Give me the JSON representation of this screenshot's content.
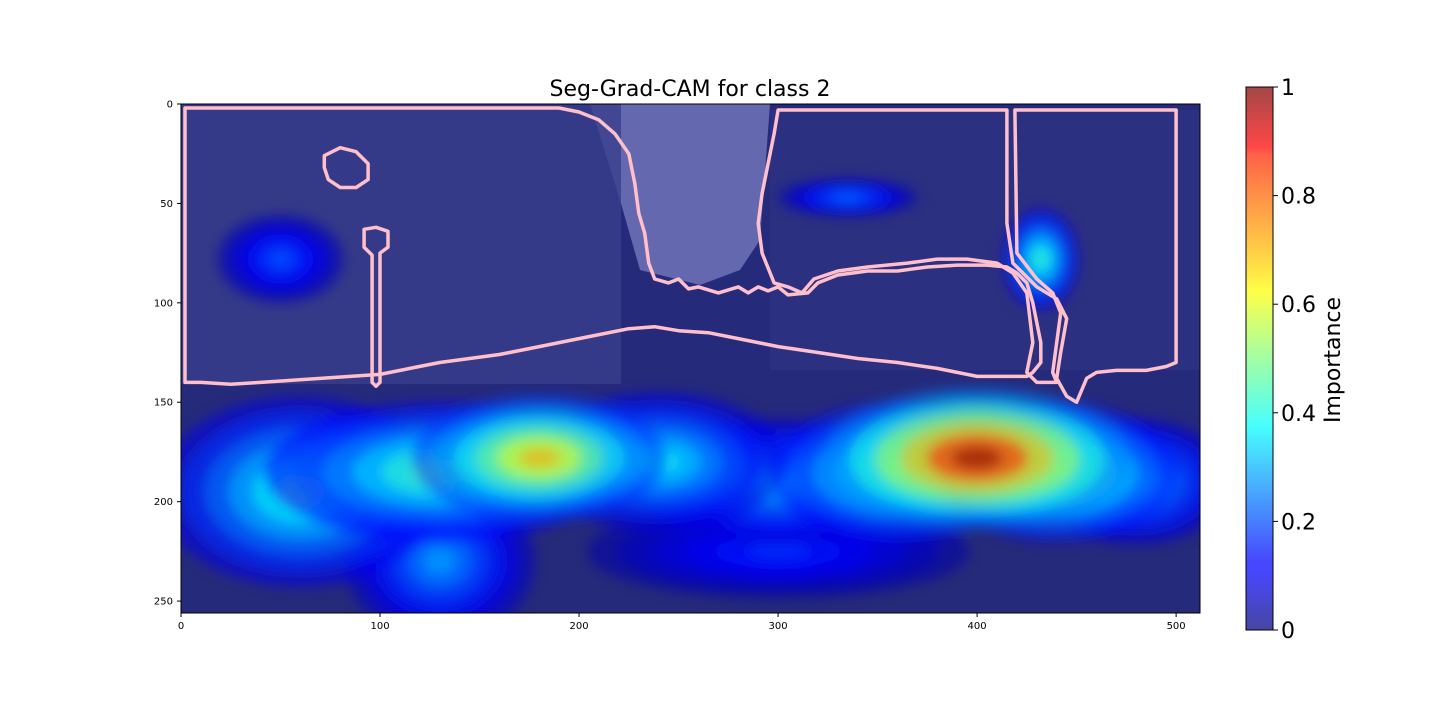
{
  "chart_data": {
    "type": "heatmap",
    "title": "Seg-Grad-CAM for class 2",
    "xlabel": "",
    "ylabel": "",
    "xlim": [
      0,
      512
    ],
    "ylim": [
      256,
      0
    ],
    "x_ticks": [
      0,
      100,
      200,
      300,
      400,
      500
    ],
    "y_ticks": [
      0,
      50,
      100,
      150,
      200,
      250
    ],
    "colorbar": {
      "label": "Importance",
      "range": [
        0,
        1
      ],
      "ticks": [
        "0",
        "0.2",
        "0.4",
        "0.6",
        "0.8",
        "1"
      ],
      "colormap": "jet"
    },
    "background": {
      "description_free": true,
      "sky_color": "#6f73b8",
      "scene_color": "#262a7a"
    },
    "hotspots": [
      {
        "x": 400,
        "y": 178,
        "sx": 48,
        "sy": 22,
        "value": 1.0
      },
      {
        "x": 440,
        "y": 185,
        "sx": 38,
        "sy": 22,
        "value": 0.6
      },
      {
        "x": 360,
        "y": 185,
        "sx": 40,
        "sy": 22,
        "value": 0.55
      },
      {
        "x": 180,
        "y": 178,
        "sx": 40,
        "sy": 20,
        "value": 0.72
      },
      {
        "x": 130,
        "y": 185,
        "sx": 55,
        "sy": 22,
        "value": 0.5
      },
      {
        "x": 60,
        "y": 195,
        "sx": 45,
        "sy": 30,
        "value": 0.45
      },
      {
        "x": 240,
        "y": 180,
        "sx": 40,
        "sy": 22,
        "value": 0.4
      },
      {
        "x": 300,
        "y": 190,
        "sx": 45,
        "sy": 20,
        "value": 0.35
      },
      {
        "x": 480,
        "y": 190,
        "sx": 30,
        "sy": 20,
        "value": 0.35
      },
      {
        "x": 50,
        "y": 78,
        "sx": 20,
        "sy": 14,
        "value": 0.22
      },
      {
        "x": 335,
        "y": 47,
        "sx": 22,
        "sy": 6,
        "value": 0.25
      },
      {
        "x": 432,
        "y": 78,
        "sx": 12,
        "sy": 16,
        "value": 0.45
      },
      {
        "x": 130,
        "y": 230,
        "sx": 30,
        "sy": 25,
        "value": 0.3
      },
      {
        "x": 300,
        "y": 225,
        "sx": 60,
        "sy": 15,
        "value": 0.18
      }
    ],
    "segmentation_outline": {
      "color": "#ffc0cb",
      "regions": [
        [
          [
            2,
            2
          ],
          [
            140,
            2
          ],
          [
            190,
            2
          ],
          [
            200,
            4
          ],
          [
            210,
            8
          ],
          [
            218,
            15
          ],
          [
            225,
            25
          ],
          [
            228,
            40
          ],
          [
            230,
            55
          ],
          [
            233,
            65
          ],
          [
            235,
            80
          ],
          [
            238,
            88
          ],
          [
            245,
            90
          ],
          [
            250,
            88
          ],
          [
            255,
            93
          ],
          [
            260,
            92
          ],
          [
            270,
            95
          ],
          [
            280,
            92
          ],
          [
            285,
            95
          ],
          [
            290,
            92
          ],
          [
            295,
            94
          ],
          [
            300,
            92
          ],
          [
            305,
            96
          ],
          [
            315,
            95
          ],
          [
            320,
            90
          ],
          [
            330,
            86
          ],
          [
            345,
            84
          ],
          [
            360,
            84
          ],
          [
            375,
            82
          ],
          [
            390,
            81
          ],
          [
            405,
            81
          ],
          [
            415,
            82
          ],
          [
            420,
            85
          ],
          [
            425,
            90
          ],
          [
            428,
            100
          ],
          [
            430,
            110
          ],
          [
            432,
            120
          ],
          [
            432,
            130
          ],
          [
            428,
            135
          ],
          [
            425,
            137
          ],
          [
            400,
            137
          ],
          [
            380,
            133
          ],
          [
            360,
            130
          ],
          [
            340,
            128
          ],
          [
            320,
            125
          ],
          [
            300,
            122
          ],
          [
            280,
            118
          ],
          [
            265,
            115
          ],
          [
            250,
            114
          ],
          [
            238,
            112
          ],
          [
            225,
            113
          ],
          [
            205,
            117
          ],
          [
            190,
            120
          ],
          [
            175,
            123
          ],
          [
            160,
            126
          ],
          [
            145,
            128
          ],
          [
            130,
            130
          ],
          [
            115,
            133
          ],
          [
            100,
            136
          ],
          [
            85,
            137
          ],
          [
            70,
            138
          ],
          [
            55,
            139
          ],
          [
            40,
            140
          ],
          [
            25,
            141
          ],
          [
            10,
            140
          ],
          [
            2,
            140
          ]
        ],
        [
          [
            300,
            3
          ],
          [
            415,
            3
          ],
          [
            415,
            60
          ],
          [
            418,
            80
          ],
          [
            430,
            92
          ],
          [
            440,
            98
          ],
          [
            445,
            108
          ],
          [
            442,
            125
          ],
          [
            440,
            138
          ],
          [
            445,
            147
          ],
          [
            450,
            150
          ],
          [
            455,
            138
          ],
          [
            460,
            135
          ],
          [
            470,
            134
          ],
          [
            485,
            134
          ],
          [
            495,
            132
          ],
          [
            500,
            130
          ],
          [
            500,
            70
          ],
          [
            500,
            3
          ],
          [
            419,
            3
          ],
          [
            420,
            75
          ],
          [
            430,
            88
          ],
          [
            438,
            95
          ],
          [
            442,
            105
          ],
          [
            440,
            120
          ],
          [
            438,
            135
          ],
          [
            440,
            140
          ],
          [
            430,
            140
          ],
          [
            425,
            135
          ],
          [
            428,
            120
          ],
          [
            425,
            95
          ],
          [
            418,
            85
          ],
          [
            410,
            80
          ],
          [
            395,
            78
          ],
          [
            380,
            78
          ],
          [
            365,
            80
          ],
          [
            345,
            82
          ],
          [
            330,
            84
          ],
          [
            318,
            88
          ],
          [
            312,
            95
          ],
          [
            305,
            92
          ],
          [
            298,
            90
          ],
          [
            292,
            75
          ],
          [
            290,
            60
          ],
          [
            292,
            45
          ],
          [
            295,
            30
          ],
          [
            298,
            15
          ]
        ],
        [
          [
            72,
            26
          ],
          [
            80,
            22
          ],
          [
            88,
            24
          ],
          [
            94,
            30
          ],
          [
            94,
            38
          ],
          [
            88,
            42
          ],
          [
            80,
            42
          ],
          [
            74,
            38
          ],
          [
            72,
            32
          ]
        ],
        [
          [
            92,
            63
          ],
          [
            98,
            62
          ],
          [
            104,
            64
          ],
          [
            104,
            72
          ],
          [
            100,
            75
          ],
          [
            100,
            140
          ],
          [
            98,
            142
          ],
          [
            96,
            140
          ],
          [
            96,
            76
          ],
          [
            92,
            72
          ]
        ]
      ]
    }
  }
}
